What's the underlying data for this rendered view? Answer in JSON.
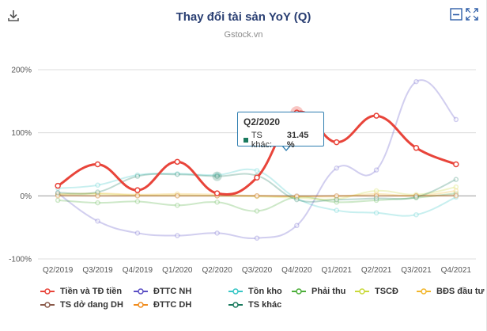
{
  "header": {
    "title": "Thay đổi tài sản YoY (Q)",
    "subtitle": "Gstock.vn",
    "download_icon": "download-icon",
    "minimize_icon": "minimize-icon",
    "expand_icon": "expand-icon"
  },
  "colors": {
    "title": "#2a3f73",
    "grid": "#dcdcdc",
    "zero": "#9a9a9a"
  },
  "tooltip": {
    "title": "Q2/2020",
    "series_label": "TS khác:",
    "value_text": "31.45 %",
    "color": "#1a7a5e"
  },
  "chart_data": {
    "type": "line",
    "title": "Thay đổi tài sản YoY (Q)",
    "subtitle": "Gstock.vn",
    "xlabel": "",
    "ylabel": "",
    "y_ticks": [
      200,
      100,
      0,
      -100
    ],
    "y_tick_labels": [
      "200%",
      "100%",
      "0%",
      "-100%"
    ],
    "ylim": [
      -100,
      200
    ],
    "categories": [
      "Q2/2019",
      "Q3/2019",
      "Q4/2019",
      "Q1/2020",
      "Q2/2020",
      "Q3/2020",
      "Q4/2020",
      "Q1/2021",
      "Q2/2021",
      "Q3/2021",
      "Q4/2021"
    ],
    "highlight_category": "Q2/2020",
    "series": [
      {
        "name": "Tiền và TĐ tiền",
        "color": "#e8443a",
        "emphasis": true,
        "values": [
          16,
          50,
          9,
          54,
          4,
          29,
          132,
          85,
          127,
          76,
          50
        ]
      },
      {
        "name": "ĐTTC NH",
        "color": "#5b4fc4",
        "emphasis": false,
        "values": [
          4,
          -40,
          -59,
          -63,
          -59,
          -67,
          -47,
          44,
          41,
          181,
          121
        ]
      },
      {
        "name": "Tồn kho",
        "color": "#37c6c6",
        "emphasis": false,
        "values": [
          12,
          17,
          33,
          35,
          33,
          40,
          -4,
          -23,
          -27,
          -30,
          -2
        ]
      },
      {
        "name": "Phải thu",
        "color": "#4cae3a",
        "emphasis": false,
        "values": [
          -7,
          -11,
          -9,
          -15,
          -10,
          -24,
          -2,
          -10,
          -7,
          -3,
          4
        ]
      },
      {
        "name": "TSCĐ",
        "color": "#c9d93a",
        "emphasis": false,
        "values": [
          2,
          3,
          1,
          1,
          0,
          -1,
          -3,
          -5,
          8,
          2,
          14
        ]
      },
      {
        "name": "BĐS đầu tư",
        "color": "#f2b62b",
        "emphasis": false,
        "values": [
          3,
          4,
          2,
          3,
          2,
          0,
          -1,
          -1,
          3,
          0,
          8
        ]
      },
      {
        "name": "TS dở dang DH",
        "color": "#8a5a4a",
        "emphasis": false,
        "values": [
          1,
          0,
          0,
          0,
          0,
          0,
          0,
          0,
          0,
          0,
          1
        ]
      },
      {
        "name": "ĐTTC DH",
        "color": "#f08c1e",
        "emphasis": false,
        "values": [
          0,
          0,
          0,
          0,
          0,
          0,
          -1,
          0,
          0,
          0,
          0
        ]
      },
      {
        "name": "TS khác",
        "color": "#1a7a5e",
        "emphasis": false,
        "values": [
          5,
          6,
          31,
          34,
          31,
          32,
          -6,
          -6,
          -4,
          -2,
          26
        ]
      }
    ]
  }
}
